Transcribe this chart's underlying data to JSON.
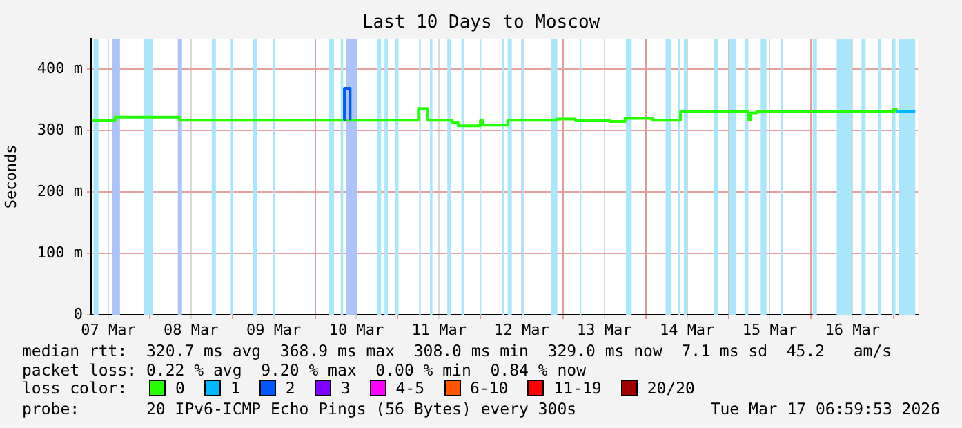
{
  "chart_data": {
    "type": "step",
    "title": "Last 10 Days to Moscow",
    "ylabel": "Seconds",
    "legend_title": "loss color:",
    "legend": "bottom",
    "grid": true,
    "xlim": [
      "2026-03-07T06:59",
      "2026-03-17T06:59"
    ],
    "xticks": [
      {
        "value": "2026-03-07T12:00",
        "label": "07 Mar"
      },
      {
        "value": "2026-03-08T00:00",
        "label": null
      },
      {
        "value": "2026-03-08T12:00",
        "label": "08 Mar"
      },
      {
        "value": "2026-03-09T00:00",
        "label": null
      },
      {
        "value": "2026-03-09T12:00",
        "label": "09 Mar"
      },
      {
        "value": "2026-03-10T00:00",
        "label": null
      },
      {
        "value": "2026-03-10T12:00",
        "label": "10 Mar"
      },
      {
        "value": "2026-03-11T00:00",
        "label": null
      },
      {
        "value": "2026-03-11T12:00",
        "label": "11 Mar"
      },
      {
        "value": "2026-03-12T00:00",
        "label": null
      },
      {
        "value": "2026-03-12T12:00",
        "label": "12 Mar"
      },
      {
        "value": "2026-03-13T00:00",
        "label": null
      },
      {
        "value": "2026-03-13T12:00",
        "label": "13 Mar"
      },
      {
        "value": "2026-03-14T00:00",
        "label": null
      },
      {
        "value": "2026-03-14T12:00",
        "label": "14 Mar"
      },
      {
        "value": "2026-03-15T00:00",
        "label": null
      },
      {
        "value": "2026-03-15T12:00",
        "label": "15 Mar"
      },
      {
        "value": "2026-03-16T00:00",
        "label": null
      },
      {
        "value": "2026-03-16T12:00",
        "label": "16 Mar"
      },
      {
        "value": "2026-03-17T00:00",
        "label": null
      }
    ],
    "ylim": [
      0,
      450
    ],
    "yticks": [
      {
        "value": 0,
        "label": "0"
      },
      {
        "value": 100,
        "label": "100 m"
      },
      {
        "value": 200,
        "label": "200 m"
      },
      {
        "value": 300,
        "label": "300 m"
      },
      {
        "value": 400,
        "label": "400 m"
      }
    ],
    "series": [
      {
        "name": "0",
        "color": "#26ff00",
        "x": [
          "2026-03-07T07:12",
          "2026-03-07T13:55",
          "2026-03-08T08:38",
          "2026-03-10T10:10",
          "2026-03-11T06:00",
          "2026-03-11T08:38",
          "2026-03-11T15:50",
          "2026-03-11T17:31",
          "2026-03-12T00:00",
          "2026-03-12T00:43",
          "2026-03-12T07:55",
          "2026-03-12T22:05",
          "2026-03-13T03:36",
          "2026-03-13T13:41",
          "2026-03-13T18:00",
          "2026-03-14T01:55",
          "2026-03-14T10:05",
          "2026-03-15T05:46",
          "2026-03-15T06:29",
          "2026-03-15T08:10",
          "2026-03-17T00:00",
          "2026-03-17T00:43"
        ],
        "values": [
          316,
          322,
          317,
          317,
          336,
          317,
          313,
          308,
          316,
          309,
          317,
          319,
          316,
          315,
          320,
          317,
          331,
          318,
          329,
          331,
          335,
          331
        ]
      },
      {
        "name": "1",
        "color": "#00b8ff",
        "x": [
          "2026-03-17T00:43",
          "2026-03-17T06:14"
        ],
        "values": [
          331,
          331
        ]
      },
      {
        "name": "2",
        "color": "#0059ff",
        "x": [
          "2026-03-10T08:30",
          "2026-03-10T08:31",
          "2026-03-10T10:10",
          "2026-03-10T10:11"
        ],
        "values": [
          317,
          369,
          369,
          317
        ]
      },
      {
        "name": "3",
        "color": "#7e00ff"
      },
      {
        "name": "4-5",
        "color": "#ff00ff"
      },
      {
        "name": "6-10",
        "color": "#ff5500"
      },
      {
        "name": "11-19",
        "color": "#ff0000"
      },
      {
        "name": "20/20",
        "color": "#a10000"
      }
    ],
    "bands": [
      {
        "axis": "x",
        "from": "2026-03-07T07:41",
        "to": "2026-03-07T09:07",
        "color": "#aae6fa"
      },
      {
        "axis": "x",
        "from": "2026-03-07T13:12",
        "to": "2026-03-07T15:22",
        "color": "#aac4fa"
      },
      {
        "axis": "x",
        "from": "2026-03-07T22:19",
        "to": "2026-03-08T00:58",
        "color": "#aae6fa"
      },
      {
        "axis": "x",
        "from": "2026-03-08T08:10",
        "to": "2026-03-08T09:22",
        "color": "#aac4fa"
      },
      {
        "axis": "x",
        "from": "2026-03-08T18:00",
        "to": "2026-03-08T19:12",
        "color": "#aae6fa"
      },
      {
        "axis": "x",
        "from": "2026-03-08T23:31",
        "to": "2026-03-09T00:14",
        "color": "#aae6fa"
      },
      {
        "axis": "x",
        "from": "2026-03-09T06:00",
        "to": "2026-03-09T07:12",
        "color": "#aae6fa"
      },
      {
        "axis": "x",
        "from": "2026-03-09T11:46",
        "to": "2026-03-09T12:29",
        "color": "#aae6fa"
      },
      {
        "axis": "x",
        "from": "2026-03-10T04:05",
        "to": "2026-03-10T05:31",
        "color": "#aae6fa"
      },
      {
        "axis": "x",
        "from": "2026-03-10T07:26",
        "to": "2026-03-10T08:10",
        "color": "#aae6fa"
      },
      {
        "axis": "x",
        "from": "2026-03-10T09:07",
        "to": "2026-03-10T12:14",
        "color": "#aac4fa"
      },
      {
        "axis": "x",
        "from": "2026-03-10T18:00",
        "to": "2026-03-10T19:12",
        "color": "#aae6fa"
      },
      {
        "axis": "x",
        "from": "2026-03-10T20:10",
        "to": "2026-03-10T21:07",
        "color": "#aae6fa"
      },
      {
        "axis": "x",
        "from": "2026-03-10T23:17",
        "to": "2026-03-11T00:14",
        "color": "#aae6fa"
      },
      {
        "axis": "x",
        "from": "2026-03-11T06:14",
        "to": "2026-03-11T06:43",
        "color": "#aae6fa"
      },
      {
        "axis": "x",
        "from": "2026-03-11T09:22",
        "to": "2026-03-11T10:05",
        "color": "#aae6fa"
      },
      {
        "axis": "x",
        "from": "2026-03-11T14:24",
        "to": "2026-03-11T15:22",
        "color": "#aae6fa"
      },
      {
        "axis": "x",
        "from": "2026-03-11T18:29",
        "to": "2026-03-11T19:12",
        "color": "#aae6fa"
      },
      {
        "axis": "x",
        "from": "2026-03-11T23:46",
        "to": "2026-03-12T00:14",
        "color": "#aae6fa"
      },
      {
        "axis": "x",
        "from": "2026-03-12T06:14",
        "to": "2026-03-12T06:58",
        "color": "#aae6fa"
      },
      {
        "axis": "x",
        "from": "2026-03-12T07:55",
        "to": "2026-03-12T09:07",
        "color": "#aae6fa"
      },
      {
        "axis": "x",
        "from": "2026-03-12T12:00",
        "to": "2026-03-12T12:43",
        "color": "#aae6fa"
      },
      {
        "axis": "x",
        "from": "2026-03-12T20:24",
        "to": "2026-03-12T22:19",
        "color": "#aae6fa"
      },
      {
        "axis": "x",
        "from": "2026-03-13T04:48",
        "to": "2026-03-13T05:17",
        "color": "#aae6fa"
      },
      {
        "axis": "x",
        "from": "2026-03-13T18:14",
        "to": "2026-03-13T19:55",
        "color": "#aae6fa"
      },
      {
        "axis": "x",
        "from": "2026-03-14T05:46",
        "to": "2026-03-14T07:26",
        "color": "#aae6fa"
      },
      {
        "axis": "x",
        "from": "2026-03-14T09:22",
        "to": "2026-03-14T10:05",
        "color": "#aae6fa"
      },
      {
        "axis": "x",
        "from": "2026-03-14T11:02",
        "to": "2026-03-14T12:00",
        "color": "#aae6fa"
      },
      {
        "axis": "x",
        "from": "2026-03-14T19:41",
        "to": "2026-03-14T20:53",
        "color": "#aae6fa"
      },
      {
        "axis": "x",
        "from": "2026-03-15T00:00",
        "to": "2026-03-15T02:10",
        "color": "#aae6fa"
      },
      {
        "axis": "x",
        "from": "2026-03-15T04:48",
        "to": "2026-03-15T05:46",
        "color": "#aae6fa"
      },
      {
        "axis": "x",
        "from": "2026-03-15T09:22",
        "to": "2026-03-15T11:02",
        "color": "#aae6fa"
      },
      {
        "axis": "x",
        "from": "2026-03-15T15:07",
        "to": "2026-03-15T15:50",
        "color": "#aae6fa"
      },
      {
        "axis": "x",
        "from": "2026-03-16T00:29",
        "to": "2026-03-16T01:41",
        "color": "#aae6fa"
      },
      {
        "axis": "x",
        "from": "2026-03-16T07:26",
        "to": "2026-03-16T11:46",
        "color": "#aae6fa"
      },
      {
        "axis": "x",
        "from": "2026-03-16T14:38",
        "to": "2026-03-16T15:50",
        "color": "#aae6fa"
      },
      {
        "axis": "x",
        "from": "2026-03-16T19:26",
        "to": "2026-03-16T20:24",
        "color": "#aae6fa"
      },
      {
        "axis": "x",
        "from": "2026-03-16T23:31",
        "to": "2026-03-17T00:29",
        "color": "#aae6fa"
      },
      {
        "axis": "x",
        "from": "2026-03-17T01:26",
        "to": "2026-03-17T06:14",
        "color": "#aae6fa"
      }
    ],
    "annotations": [
      "median rtt:  320.7 ms avg  368.9 ms max  308.0 ms min  329.0 ms now  7.1 ms sd  45.2   am/s",
      "packet loss: 0.22 % avg  9.20 % max  0.00 % min  0.84 % now",
      "probe:       20 IPv6-ICMP Echo Pings (56 Bytes) every 300s",
      "Tue Mar 17 06:59:53 2026"
    ]
  }
}
